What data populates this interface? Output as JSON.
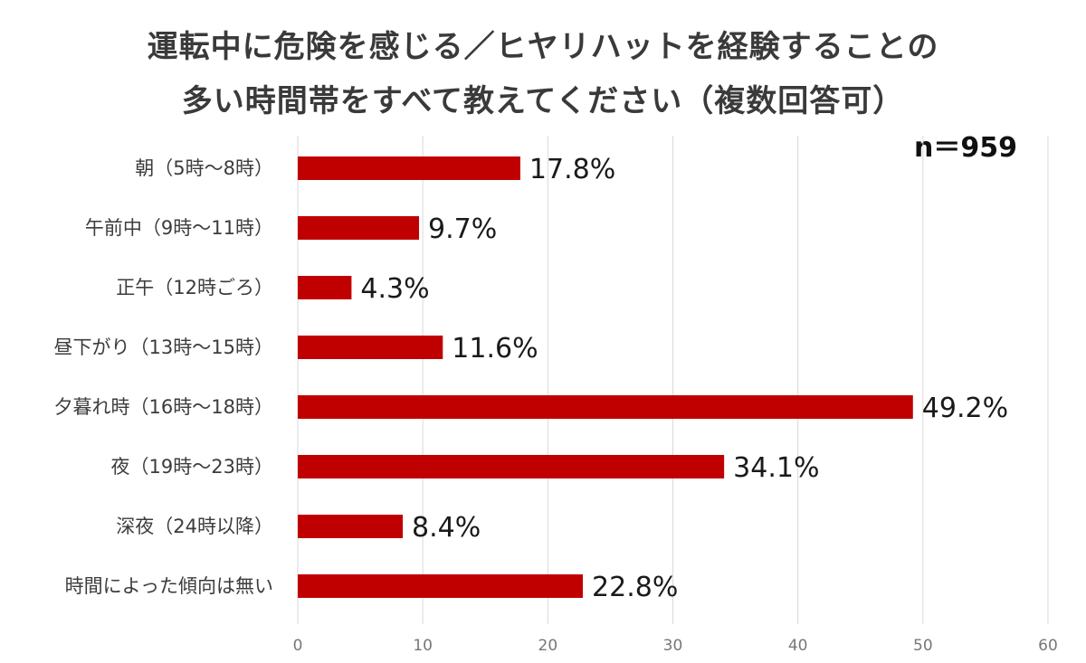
{
  "title_line1": "運転中に危険を感じる／ヒヤリハットを経験することの",
  "title_line2": "多い時間帯をすべて教えてください（複数回答可）",
  "sample_size": "n＝959",
  "colors": {
    "bar": "#c00000",
    "grid": "#d9d9d9",
    "text": "#3a3a3a"
  },
  "chart_data": {
    "type": "bar",
    "orientation": "horizontal",
    "title": "運転中に危険を感じる／ヒヤリハットを経験することの多い時間帯をすべて教えてください（複数回答可）",
    "categories": [
      "朝（5時～8時）",
      "午前中（9時～11時）",
      "正午（12時ごろ）",
      "昼下がり（13時～15時）",
      "夕暮れ時（16時～18時）",
      "夜（19時～23時）",
      "深夜（24時以降）",
      "時間によった傾向は無い"
    ],
    "values": [
      17.8,
      9.7,
      4.3,
      11.6,
      49.2,
      34.1,
      8.4,
      22.8
    ],
    "value_labels": [
      "17.8%",
      "9.7%",
      "4.3%",
      "11.6%",
      "49.2%",
      "34.1%",
      "8.4%",
      "22.8%"
    ],
    "xlim": [
      0,
      60
    ],
    "xticks": [
      0,
      10,
      20,
      30,
      40,
      50,
      60
    ],
    "xlabel": "",
    "ylabel": "",
    "grid": true,
    "legend": "none"
  }
}
